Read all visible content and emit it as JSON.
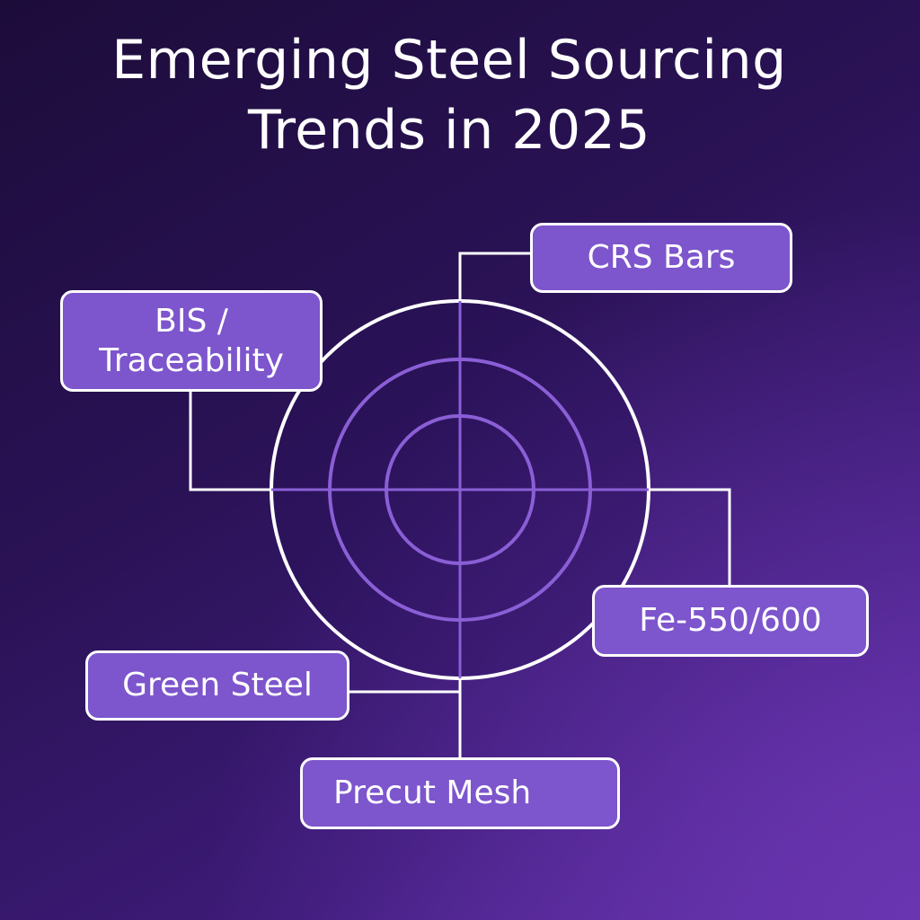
{
  "title": {
    "line1": "Emerging Steel Sourcing",
    "line2": "Trends in 2025"
  },
  "labels": {
    "crs_bars": "CRS Bars",
    "bis_line1": "BIS /",
    "bis_line2": "Traceability",
    "fe_grade": "Fe-550/600",
    "green_steel": "Green Steel",
    "precut_mesh": "Precut Mesh"
  },
  "colors": {
    "box_fill": "#7d55cc",
    "outer_ring": "#ffffff",
    "inner_rings": "#8a5fd6",
    "connectors": "#ffffff"
  }
}
